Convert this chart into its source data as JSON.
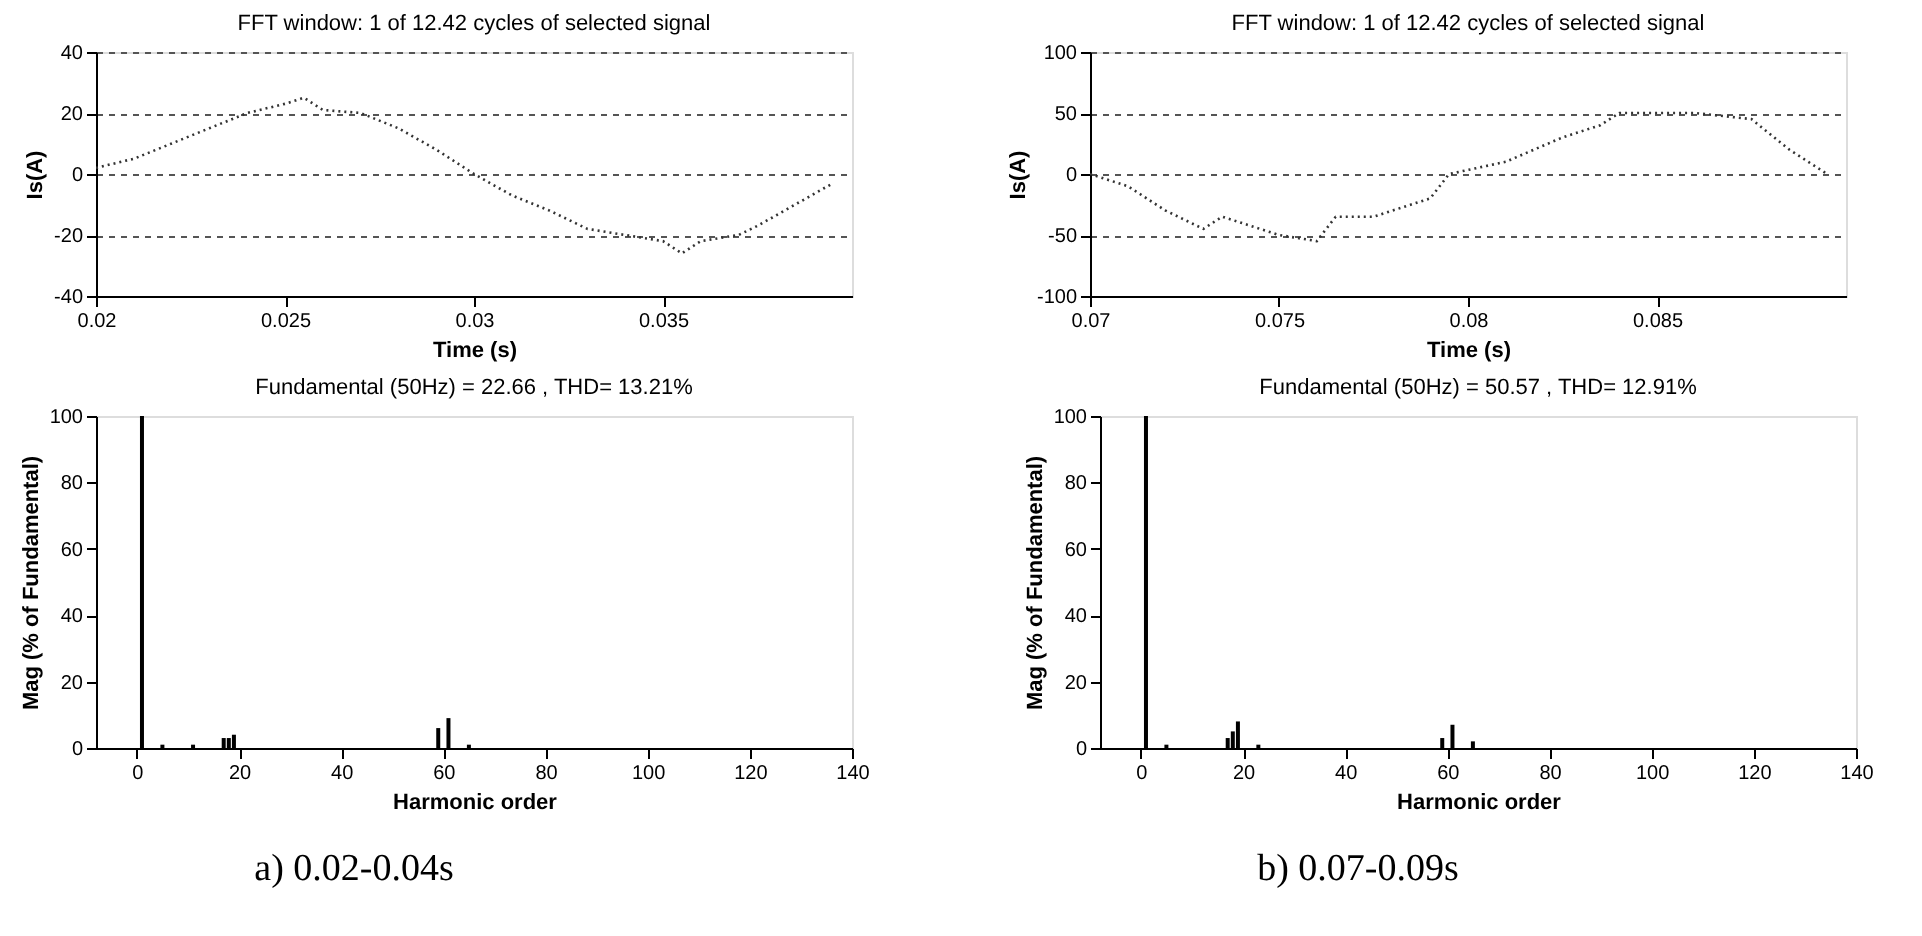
{
  "chart_data": [
    {
      "type": "line",
      "title": "FFT window: 1 of 12.42 cycles of selected signal",
      "xlabel": "Time (s)",
      "ylabel": "Is(A)",
      "xlim": [
        0.02,
        0.04
      ],
      "xticks": [
        0.02,
        0.025,
        0.03,
        0.035
      ],
      "ylim": [
        -40,
        40
      ],
      "yticks": [
        -40,
        -20,
        0,
        20,
        40
      ],
      "grid": "y",
      "line_style": "dotted",
      "series": [
        {
          "color": "#333333",
          "x": [
            0.02,
            0.021,
            0.022,
            0.023,
            0.024,
            0.025,
            0.0255,
            0.026,
            0.027,
            0.028,
            0.029,
            0.03,
            0.031,
            0.032,
            0.033,
            0.034,
            0.035,
            0.0355,
            0.036,
            0.037,
            0.0375,
            0.0385,
            0.0395
          ],
          "values": [
            2,
            5,
            10,
            15,
            20,
            23,
            25,
            21,
            20,
            15,
            8,
            0,
            -7,
            -12,
            -18,
            -20,
            -22,
            -26,
            -22,
            -20,
            -17,
            -10,
            -3
          ]
        }
      ]
    },
    {
      "type": "line",
      "title": "FFT window: 1 of 12.42 cycles of selected signal",
      "xlabel": "Time (s)",
      "ylabel": "Is(A)",
      "xlim": [
        0.07,
        0.09
      ],
      "xticks": [
        0.07,
        0.075,
        0.08,
        0.085
      ],
      "ylim": [
        -100,
        100
      ],
      "yticks": [
        -100,
        -50,
        0,
        50,
        100
      ],
      "grid": "y",
      "line_style": "dotted",
      "series": [
        {
          "color": "#333333",
          "x": [
            0.07,
            0.071,
            0.072,
            0.073,
            0.0735,
            0.075,
            0.076,
            0.0765,
            0.0775,
            0.079,
            0.0795,
            0.081,
            0.0825,
            0.0835,
            0.084,
            0.085,
            0.086,
            0.0875,
            0.0885,
            0.0895
          ],
          "values": [
            0,
            -10,
            -30,
            -45,
            -35,
            -50,
            -55,
            -35,
            -35,
            -20,
            0,
            10,
            30,
            40,
            50,
            50,
            50,
            45,
            20,
            0
          ]
        }
      ]
    },
    {
      "type": "bar",
      "title": "Fundamental (50Hz) = 22.66 , THD= 13.21%",
      "xlabel": "Harmonic order",
      "ylabel": "Mag (% of Fundamental)",
      "xlim": [
        -8,
        140
      ],
      "xticks": [
        0,
        20,
        40,
        60,
        80,
        100,
        120,
        140
      ],
      "ylim": [
        0,
        100
      ],
      "yticks": [
        0,
        20,
        40,
        60,
        80,
        100
      ],
      "annotations": [
        "a) 0.02-0.04s"
      ],
      "series": [
        {
          "color": "#000000",
          "x": [
            1,
            5,
            11,
            17,
            18,
            19,
            59,
            61,
            65
          ],
          "values": [
            100,
            1,
            1,
            3,
            3,
            4,
            6,
            9,
            1
          ]
        }
      ]
    },
    {
      "type": "bar",
      "title": "Fundamental (50Hz) = 50.57 , THD= 12.91%",
      "xlabel": "Harmonic order",
      "ylabel": "Mag (% of Fundamental)",
      "xlim": [
        -8,
        140
      ],
      "xticks": [
        0,
        20,
        40,
        60,
        80,
        100,
        120,
        140
      ],
      "ylim": [
        0,
        100
      ],
      "yticks": [
        0,
        20,
        40,
        60,
        80,
        100
      ],
      "annotations": [
        "b) 0.07-0.09s"
      ],
      "series": [
        {
          "color": "#000000",
          "x": [
            1,
            5,
            17,
            18,
            19,
            23,
            59,
            61,
            65
          ],
          "values": [
            100,
            1,
            3,
            5,
            8,
            1,
            3,
            7,
            2
          ]
        }
      ]
    }
  ]
}
